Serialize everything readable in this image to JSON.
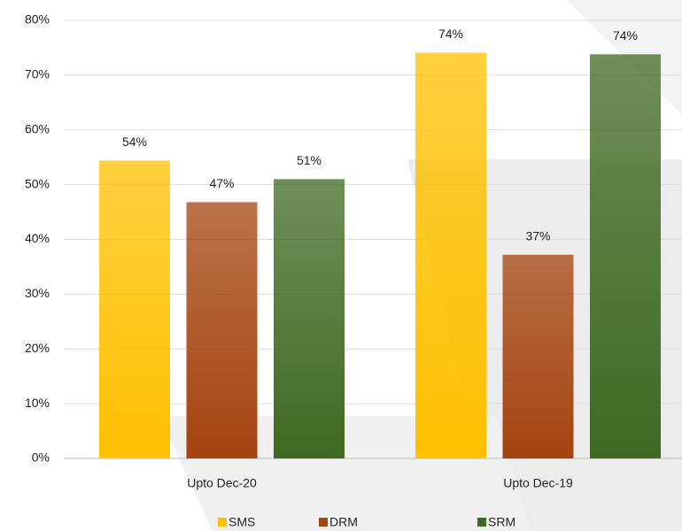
{
  "chart_data": {
    "type": "bar",
    "categories": [
      "Upto Dec-20",
      "Upto Dec-19"
    ],
    "series": [
      {
        "name": "SMS",
        "color": "#ffc000",
        "values": [
          54.4,
          74.1
        ],
        "value_labels": [
          "54%",
          "74%"
        ]
      },
      {
        "name": "DRM",
        "color": "#a5430f",
        "values": [
          46.8,
          37.2
        ],
        "value_labels": [
          "47%",
          "37%"
        ]
      },
      {
        "name": "SRM",
        "color": "#3f6a22",
        "values": [
          51,
          73.8
        ],
        "value_labels": [
          "51%",
          "74%"
        ]
      }
    ],
    "ylim": [
      0,
      80
    ],
    "yticks": [
      {
        "value": 0,
        "label": "0%"
      },
      {
        "value": 10,
        "label": "10%"
      },
      {
        "value": 20,
        "label": "20%"
      },
      {
        "value": 30,
        "label": "30%"
      },
      {
        "value": 40,
        "label": "40%"
      },
      {
        "value": 50,
        "label": "50%"
      },
      {
        "value": 60,
        "label": "60%"
      },
      {
        "value": 70,
        "label": "70%"
      },
      {
        "value": 80,
        "label": "80%"
      }
    ],
    "grid": true,
    "legend": "bottom"
  }
}
